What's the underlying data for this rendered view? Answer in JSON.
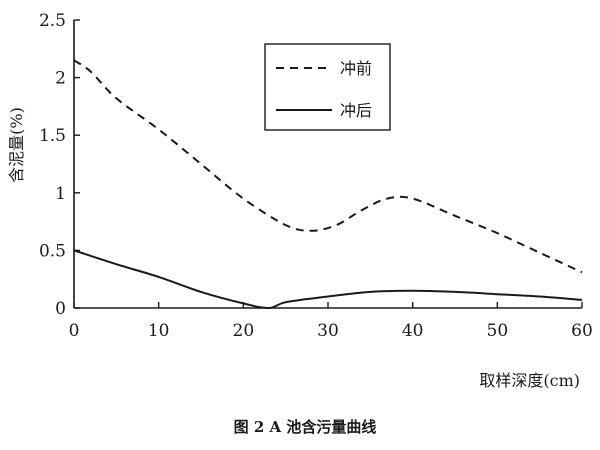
{
  "chart_data": {
    "type": "line",
    "xlabel": "取样深度(cm)",
    "ylabel": "含泥量(%)",
    "xlim": [
      0,
      60
    ],
    "ylim": [
      0,
      2.5
    ],
    "x_ticks": [
      "0",
      "10",
      "20",
      "30",
      "40",
      "50",
      "60"
    ],
    "y_ticks": [
      "0",
      "0.5",
      "1",
      "1.5",
      "2",
      "2.5"
    ],
    "grid": false,
    "legend_position": "top-center",
    "series": [
      {
        "name": "冲前",
        "style": "dashed",
        "color": "#1a1a1a",
        "x": [
          0,
          2,
          5,
          10,
          15,
          20,
          25,
          28,
          31,
          34,
          37,
          40,
          45,
          50,
          55,
          60
        ],
        "y": [
          2.15,
          2.05,
          1.82,
          1.55,
          1.25,
          0.95,
          0.72,
          0.67,
          0.72,
          0.85,
          0.95,
          0.95,
          0.8,
          0.65,
          0.48,
          0.31
        ]
      },
      {
        "name": "冲后",
        "style": "solid",
        "color": "#1a1a1a",
        "x": [
          0,
          5,
          10,
          15,
          20,
          23,
          25,
          30,
          35,
          40,
          45,
          50,
          55,
          60
        ],
        "y": [
          0.5,
          0.38,
          0.27,
          0.14,
          0.04,
          0.0,
          0.05,
          0.1,
          0.14,
          0.15,
          0.14,
          0.12,
          0.1,
          0.07
        ]
      }
    ]
  },
  "caption": "图 2   A 池含污量曲线"
}
